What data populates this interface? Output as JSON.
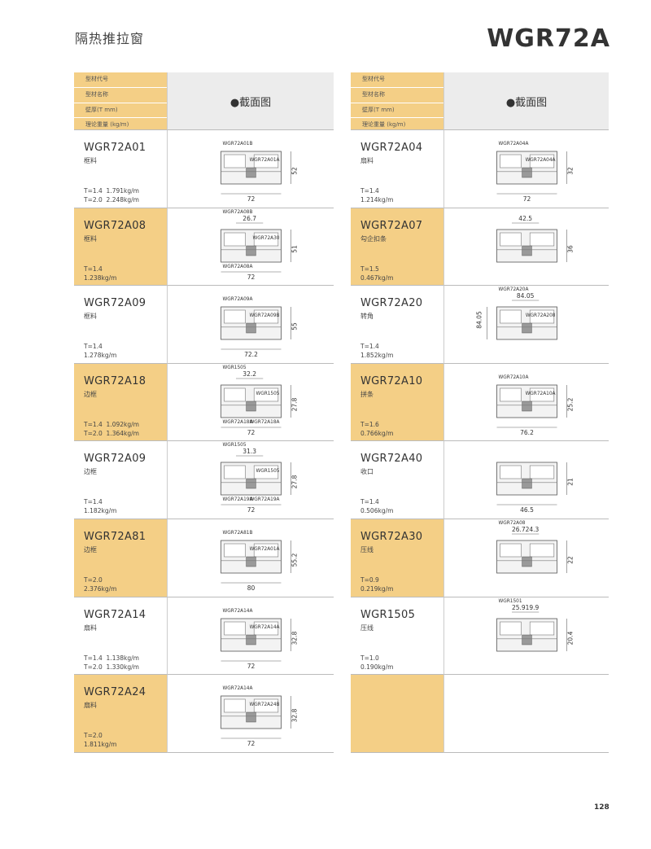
{
  "header": {
    "title": "隔热推拉窗",
    "model": "WGR72A"
  },
  "column_header": {
    "labels": [
      "型材代号",
      "型材名称",
      "壁厚(T mm)",
      "理论重量 (kg/m)"
    ],
    "drawing_title": "●截面图"
  },
  "columns": [
    {
      "rows": [
        {
          "code": "WGR72A01",
          "name": "框料",
          "specs": [
            "T=1.4  1.791kg/m",
            "T=2.0  2.248kg/m"
          ],
          "drawing": {
            "parts": [
              "WGR72A01B",
              "WGR72A01A"
            ],
            "right": 52,
            "bottom": 72
          }
        },
        {
          "code": "WGR72A08",
          "name": "框料",
          "specs": [
            "T=1.4",
            "1.238kg/m"
          ],
          "drawing": {
            "parts": [
              "WGR72A08B",
              "WGR72A30",
              "WGR72A08A"
            ],
            "top": [
              26.7
            ],
            "right": 51,
            "bottom": 72
          }
        },
        {
          "code": "WGR72A09",
          "name": "框料",
          "specs": [
            "T=1.4",
            "1.278kg/m"
          ],
          "drawing": {
            "parts": [
              "WGR72A09A",
              "WGR72A09B"
            ],
            "right": 55,
            "bottom": 72.2
          }
        },
        {
          "code": "WGR72A18",
          "name": "边框",
          "specs": [
            "T=1.4  1.092kg/m",
            "T=2.0  1.364kg/m"
          ],
          "drawing": {
            "parts": [
              "WGR1505",
              "WGR1505",
              "WGR72A18A",
              "WGR72A18A"
            ],
            "top": [
              32.2
            ],
            "right": 27.8,
            "bottom": 72
          }
        },
        {
          "code": "WGR72A09",
          "name": "边框",
          "specs": [
            "T=1.4",
            "1.182kg/m"
          ],
          "drawing": {
            "parts": [
              "WGR1505",
              "WGR1505",
              "WGR72A19A",
              "WGR72A19A"
            ],
            "top": [
              31.3
            ],
            "right": 27.8,
            "bottom": 72
          }
        },
        {
          "code": "WGR72A81",
          "name": "边框",
          "specs": [
            "T=2.0",
            "2.376kg/m"
          ],
          "drawing": {
            "parts": [
              "WGR72A81B",
              "WGR72A01A"
            ],
            "right": 55.2,
            "bottom": 80
          }
        },
        {
          "code": "WGR72A14",
          "name": "扇料",
          "specs": [
            "T=1.4  1.138kg/m",
            "T=2.0  1.330kg/m"
          ],
          "drawing": {
            "parts": [
              "WGR72A14A",
              "WGR72A14A"
            ],
            "right": 32.8,
            "bottom": 72
          }
        },
        {
          "code": "WGR72A24",
          "name": "扇料",
          "specs": [
            "T=2.0",
            "1.811kg/m"
          ],
          "drawing": {
            "parts": [
              "WGR72A14A",
              "WGR72A24B"
            ],
            "right": 32.8,
            "bottom": 72
          }
        }
      ]
    },
    {
      "rows": [
        {
          "code": "WGR72A04",
          "name": "扇料",
          "specs": [
            "T=1.4",
            "1.214kg/m"
          ],
          "drawing": {
            "parts": [
              "WGR72A04A",
              "WGR72A04A"
            ],
            "right": 32,
            "bottom": 72
          }
        },
        {
          "code": "WGR72A07",
          "name": "勾企扣条",
          "specs": [
            "T=1.5",
            "0.467kg/m"
          ],
          "drawing": {
            "top": [
              42.5
            ],
            "right": 36
          }
        },
        {
          "code": "WGR72A20",
          "name": "转角",
          "specs": [
            "T=1.4",
            "1.852kg/m"
          ],
          "drawing": {
            "parts": [
              "WGR72A20A",
              "WGR72A208"
            ],
            "top": [
              84.05
            ],
            "left": 84.05
          }
        },
        {
          "code": "WGR72A10",
          "name": "拼条",
          "specs": [
            "T=1.6",
            "0.766kg/m"
          ],
          "drawing": {
            "parts": [
              "WGR72A10A",
              "WGR72A10A"
            ],
            "right": 25.2,
            "bottom": 76.2
          }
        },
        {
          "code": "WGR72A40",
          "name": "收口",
          "specs": [
            "T=1.4",
            "0.506kg/m"
          ],
          "drawing": {
            "right": 21,
            "bottom": 46.5
          }
        },
        {
          "code": "WGR72A30",
          "name": "压线",
          "specs": [
            "T=0.9",
            "0.219kg/m"
          ],
          "drawing": {
            "parts": [
              "WGR72A08"
            ],
            "top": [
              26.7,
              24.3
            ],
            "right": 22
          }
        },
        {
          "code": "WGR1505",
          "name": "压线",
          "specs": [
            "T=1.0",
            "0.190kg/m"
          ],
          "drawing": {
            "parts": [
              "WGR1501"
            ],
            "top": [
              25.9,
              19.9
            ],
            "right": 20.4
          }
        }
      ]
    }
  ],
  "page_number": "128"
}
